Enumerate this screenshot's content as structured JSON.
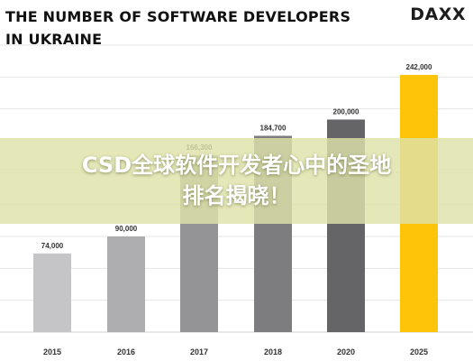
{
  "header": {
    "title_line1": "THE NUMBER OF SOFTWARE DEVELOPERS",
    "title_line2": "IN UKRAINE",
    "logo": "DAXX"
  },
  "overlay": {
    "headline_line1": "CSD全球软件开发者心中的圣地",
    "headline_line2": "排名揭晓！",
    "color": "#dee2a8"
  },
  "chart_data": {
    "type": "bar",
    "title": "THE NUMBER OF SOFTWARE DEVELOPERS IN UKRAINE",
    "categories": [
      "2015",
      "2016",
      "2017",
      "2018",
      "2020",
      "2025"
    ],
    "values": [
      74000,
      90000,
      166300,
      184700,
      200000,
      242000
    ],
    "value_labels": [
      "74,000",
      "90,000",
      "166,300",
      "184,700",
      "200,000",
      "242,000"
    ],
    "colors": [
      "#c5c5c8",
      "#aeaeb1",
      "#949497",
      "#7d7d80",
      "#656568",
      "#fec40a"
    ],
    "ylim": [
      0,
      270000
    ],
    "grid": true,
    "legend": "none"
  }
}
